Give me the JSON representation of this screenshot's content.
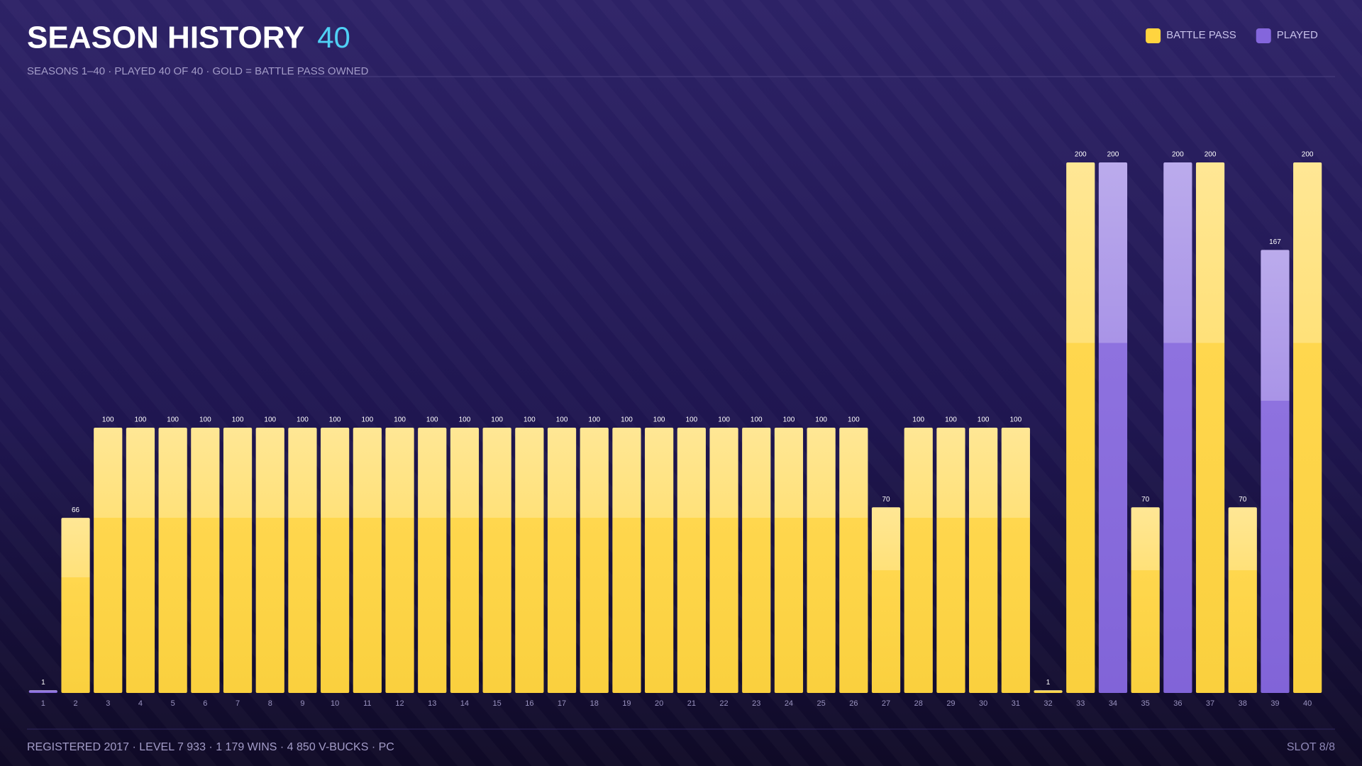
{
  "chart_data": {
    "type": "bar",
    "title": "SEASON HISTORY",
    "title_count": "40",
    "subtitle": "SEASONS 1–40  ·  PLAYED 40 OF 40  ·  GOLD = BATTLE PASS OWNED",
    "categories": [
      "1",
      "2",
      "3",
      "4",
      "5",
      "6",
      "7",
      "8",
      "9",
      "10",
      "11",
      "12",
      "13",
      "14",
      "15",
      "16",
      "17",
      "18",
      "19",
      "20",
      "21",
      "22",
      "23",
      "24",
      "25",
      "26",
      "27",
      "28",
      "29",
      "30",
      "31",
      "32",
      "33",
      "34",
      "35",
      "36",
      "37",
      "38",
      "39",
      "40"
    ],
    "series": [
      {
        "name": "BATTLE PASS",
        "color": "#ffd43f",
        "values": [
          null,
          66,
          100,
          100,
          100,
          100,
          100,
          100,
          100,
          100,
          100,
          100,
          100,
          100,
          100,
          100,
          100,
          100,
          100,
          100,
          100,
          100,
          100,
          100,
          100,
          100,
          70,
          100,
          100,
          100,
          100,
          1,
          200,
          null,
          70,
          null,
          200,
          70,
          null,
          200
        ]
      },
      {
        "name": "PLAYED",
        "color": "#8466dc",
        "values": [
          1,
          null,
          null,
          null,
          null,
          null,
          null,
          null,
          null,
          null,
          null,
          null,
          null,
          null,
          null,
          null,
          null,
          null,
          null,
          null,
          null,
          null,
          null,
          null,
          null,
          null,
          null,
          null,
          null,
          null,
          null,
          null,
          null,
          200,
          null,
          200,
          null,
          null,
          167,
          null
        ]
      }
    ],
    "ylim": [
      0,
      200
    ],
    "legend": "top-right"
  },
  "footer": {
    "stats": "REGISTERED 2017  ·  LEVEL 7 933  ·  1 179 WINS  ·  4 850 V-BUCKS  ·  PC",
    "slot": "SLOT 8/8"
  }
}
